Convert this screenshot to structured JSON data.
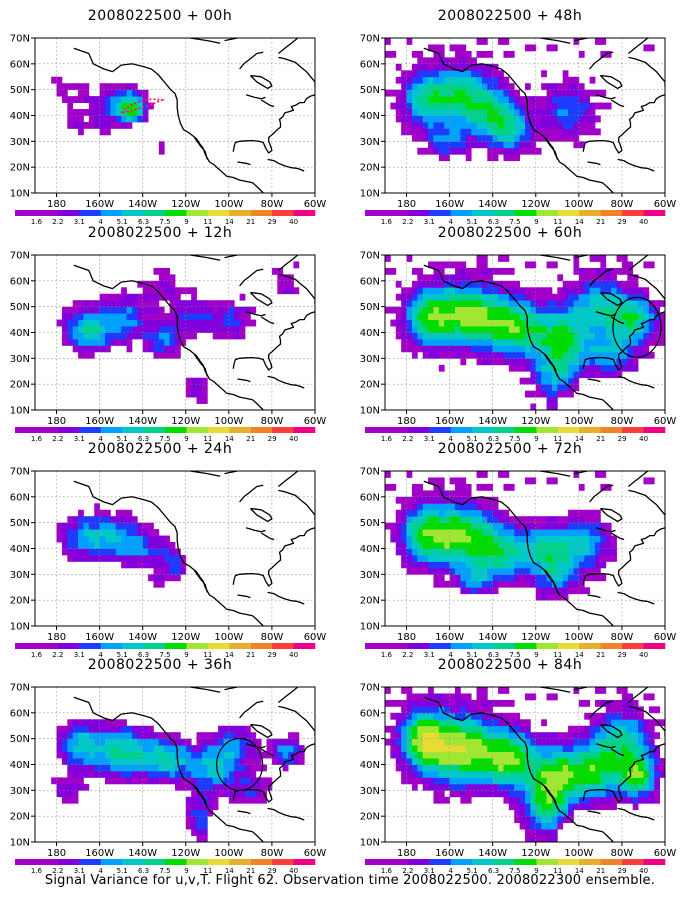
{
  "figure": {
    "caption": "Signal Variance for u,v,T. Flight 62. Observation time 2008022500. 2008022300 ensemble."
  },
  "map_axes": {
    "lon_labels": [
      "180",
      "160W",
      "140W",
      "120W",
      "100W",
      "80W",
      "60W"
    ],
    "lat_labels": [
      "10N",
      "20N",
      "30N",
      "40N",
      "50N",
      "60N",
      "70N"
    ]
  },
  "colorbar": {
    "labels": [
      "1.6",
      "2.2",
      "3.1",
      "4",
      "5.1",
      "6.3",
      "7.5",
      "9",
      "11",
      "14",
      "21",
      "29",
      "40"
    ],
    "colors": [
      "#a000c8",
      "#8200dc",
      "#1e3cff",
      "#00a0ff",
      "#00c8c8",
      "#00d28c",
      "#00dc00",
      "#a0e632",
      "#e6dc32",
      "#e6af2d",
      "#f08228",
      "#fa3c3c",
      "#f00082"
    ]
  },
  "panels": [
    {
      "title": "2008022500 + 00h",
      "level": 0,
      "circle": false,
      "track": true
    },
    {
      "title": "2008022500 + 48h",
      "level": 4,
      "circle": false,
      "track": false
    },
    {
      "title": "2008022500 + 12h",
      "level": 1,
      "circle": false,
      "track": false
    },
    {
      "title": "2008022500 + 60h",
      "level": 5,
      "circle": true,
      "track": false
    },
    {
      "title": "2008022500 + 24h",
      "level": 2,
      "circle": false,
      "track": false
    },
    {
      "title": "2008022500 + 72h",
      "level": 6,
      "circle": false,
      "track": false
    },
    {
      "title": "2008022500 + 36h",
      "level": 3,
      "circle": true,
      "track": false
    },
    {
      "title": "2008022500 + 84h",
      "level": 7,
      "circle": false,
      "track": false
    }
  ]
}
